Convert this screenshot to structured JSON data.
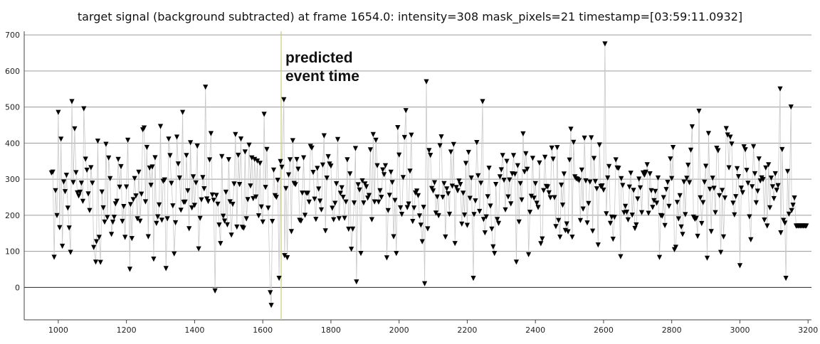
{
  "chart_data": {
    "type": "scatter",
    "title": "target signal (background subtracted) at frame 1654.0: intensity=308 mask_pixels=21 timestamp=[03:59:11.0932]",
    "xlabel": "",
    "ylabel": "",
    "xlim": [
      900,
      3210
    ],
    "ylim": [
      -90,
      710
    ],
    "x_ticks": [
      1000,
      1200,
      1400,
      1600,
      1800,
      2000,
      2200,
      2400,
      2600,
      2800,
      3000,
      3200
    ],
    "y_ticks": [
      0,
      100,
      200,
      300,
      400,
      500,
      600,
      700
    ],
    "grid": {
      "horizontal": true,
      "vertical": false
    },
    "marker": "down-triangle",
    "marker_color": "#000000",
    "stem_color": "#c8c8c8",
    "event_line": {
      "x": 1654,
      "color": "#c9cc7a",
      "label_line1": "predicted",
      "label_line2": "event time"
    },
    "x_range": [
      980,
      3160
    ],
    "x_step": 4,
    "band_center": 265,
    "band_spread": 95,
    "notable_points": [
      {
        "x": 1000,
        "y": 485
      },
      {
        "x": 1040,
        "y": 515
      },
      {
        "x": 1075,
        "y": 495
      },
      {
        "x": 1110,
        "y": 70
      },
      {
        "x": 1210,
        "y": 50
      },
      {
        "x": 1365,
        "y": 485
      },
      {
        "x": 1432,
        "y": 555
      },
      {
        "x": 1460,
        "y": -10
      },
      {
        "x": 1625,
        "y": -50
      },
      {
        "x": 1622,
        "y": -15
      },
      {
        "x": 1648,
        "y": 25
      },
      {
        "x": 1662,
        "y": 520
      },
      {
        "x": 1875,
        "y": 15
      },
      {
        "x": 2075,
        "y": 10
      },
      {
        "x": 2080,
        "y": 570
      },
      {
        "x": 2218,
        "y": 25
      },
      {
        "x": 2245,
        "y": 515
      },
      {
        "x": 2604,
        "y": 675
      },
      {
        "x": 2650,
        "y": 85
      },
      {
        "x": 3000,
        "y": 60
      },
      {
        "x": 3118,
        "y": 550
      },
      {
        "x": 3135,
        "y": 25
      },
      {
        "x": 3150,
        "y": 500
      }
    ],
    "tail": {
      "x_start": 3165,
      "x_end": 3195,
      "y": 170
    }
  }
}
